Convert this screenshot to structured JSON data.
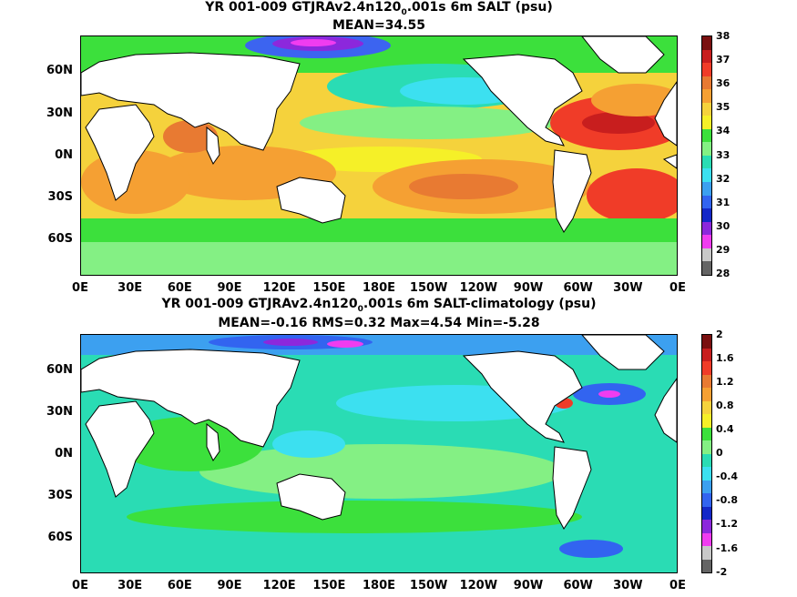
{
  "top": {
    "title_prefix": "YR 001-009 GTJRAv2.4n120",
    "title_sub": "0",
    "title_suffix": ".001s 6m SALT (psu)",
    "stats": "MEAN=34.55",
    "colorbar_labels": [
      "38",
      "37",
      "36",
      "35",
      "34",
      "33",
      "32",
      "31",
      "30",
      "29",
      "28"
    ],
    "colorbar_colors": [
      "#7a1010",
      "#c81e1e",
      "#f03c28",
      "#e87a32",
      "#f5a033",
      "#f5d23c",
      "#f5f028",
      "#3ce03c",
      "#84f084",
      "#2adcb4",
      "#3ce0f0",
      "#3ca0f0",
      "#3264f0",
      "#1428c8",
      "#8c28dc",
      "#f03cf0",
      "#c8c8c8",
      "#646464"
    ]
  },
  "bottom": {
    "title_prefix": "YR 001-009 GTJRAv2.4n120",
    "title_sub": "0",
    "title_suffix": ".001s 6m SALT-climatology (psu)",
    "stats": "MEAN=-0.16   RMS=0.32   Max=4.54   Min=-5.28",
    "colorbar_labels": [
      "2",
      "1.6",
      "1.2",
      "0.8",
      "0.4",
      "0",
      "-0.4",
      "-0.8",
      "-1.2",
      "-1.6",
      "-2"
    ],
    "colorbar_colors": [
      "#7a1010",
      "#c81e1e",
      "#f03c28",
      "#e87a32",
      "#f5a033",
      "#f5d23c",
      "#f5f028",
      "#3ce03c",
      "#84f084",
      "#2adcb4",
      "#3ce0f0",
      "#3ca0f0",
      "#3264f0",
      "#1428c8",
      "#8c28dc",
      "#f03cf0",
      "#c8c8c8",
      "#646464"
    ]
  },
  "lat_labels": [
    "60N",
    "30N",
    "0N",
    "30S",
    "60S"
  ],
  "lon_labels": [
    "0E",
    "30E",
    "60E",
    "90E",
    "120E",
    "150E",
    "180E",
    "150W",
    "120W",
    "90W",
    "60W",
    "30W",
    "0E"
  ],
  "colors": {
    "land": "#ffffff",
    "coast": "#000000"
  }
}
